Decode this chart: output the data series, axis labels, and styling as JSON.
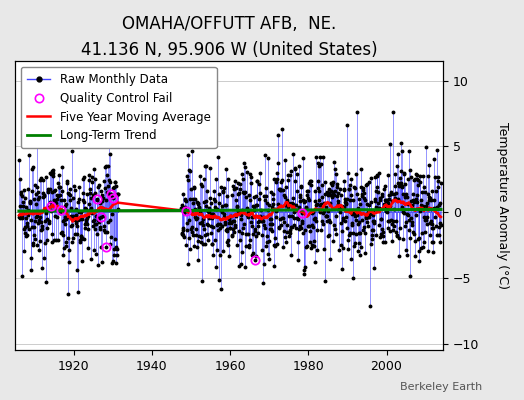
{
  "title": "OMAHA/OFFUTT AFB,  NE.",
  "subtitle": "41.136 N, 95.906 W (United States)",
  "ylabel": "Temperature Anomaly (°C)",
  "attribution": "Berkeley Earth",
  "start_year": 1906.0,
  "end_year": 2014.0,
  "ylim": [
    -10.5,
    11.5
  ],
  "yticks": [
    -10,
    -5,
    0,
    5,
    10
  ],
  "xticks": [
    1920,
    1940,
    1960,
    1980,
    2000
  ],
  "line_color": "#4444ff",
  "dot_color": "black",
  "qc_color": "magenta",
  "moving_avg_color": "red",
  "trend_color": "green",
  "bg_color": "#e8e8e8",
  "plot_bg_color": "#ffffff",
  "title_fontsize": 12,
  "subtitle_fontsize": 9,
  "label_fontsize": 9,
  "tick_fontsize": 9,
  "legend_fontsize": 8.5,
  "moving_avg_window": 60,
  "seed": 99,
  "gap_start": 1931.5,
  "gap_end": 1947.5
}
